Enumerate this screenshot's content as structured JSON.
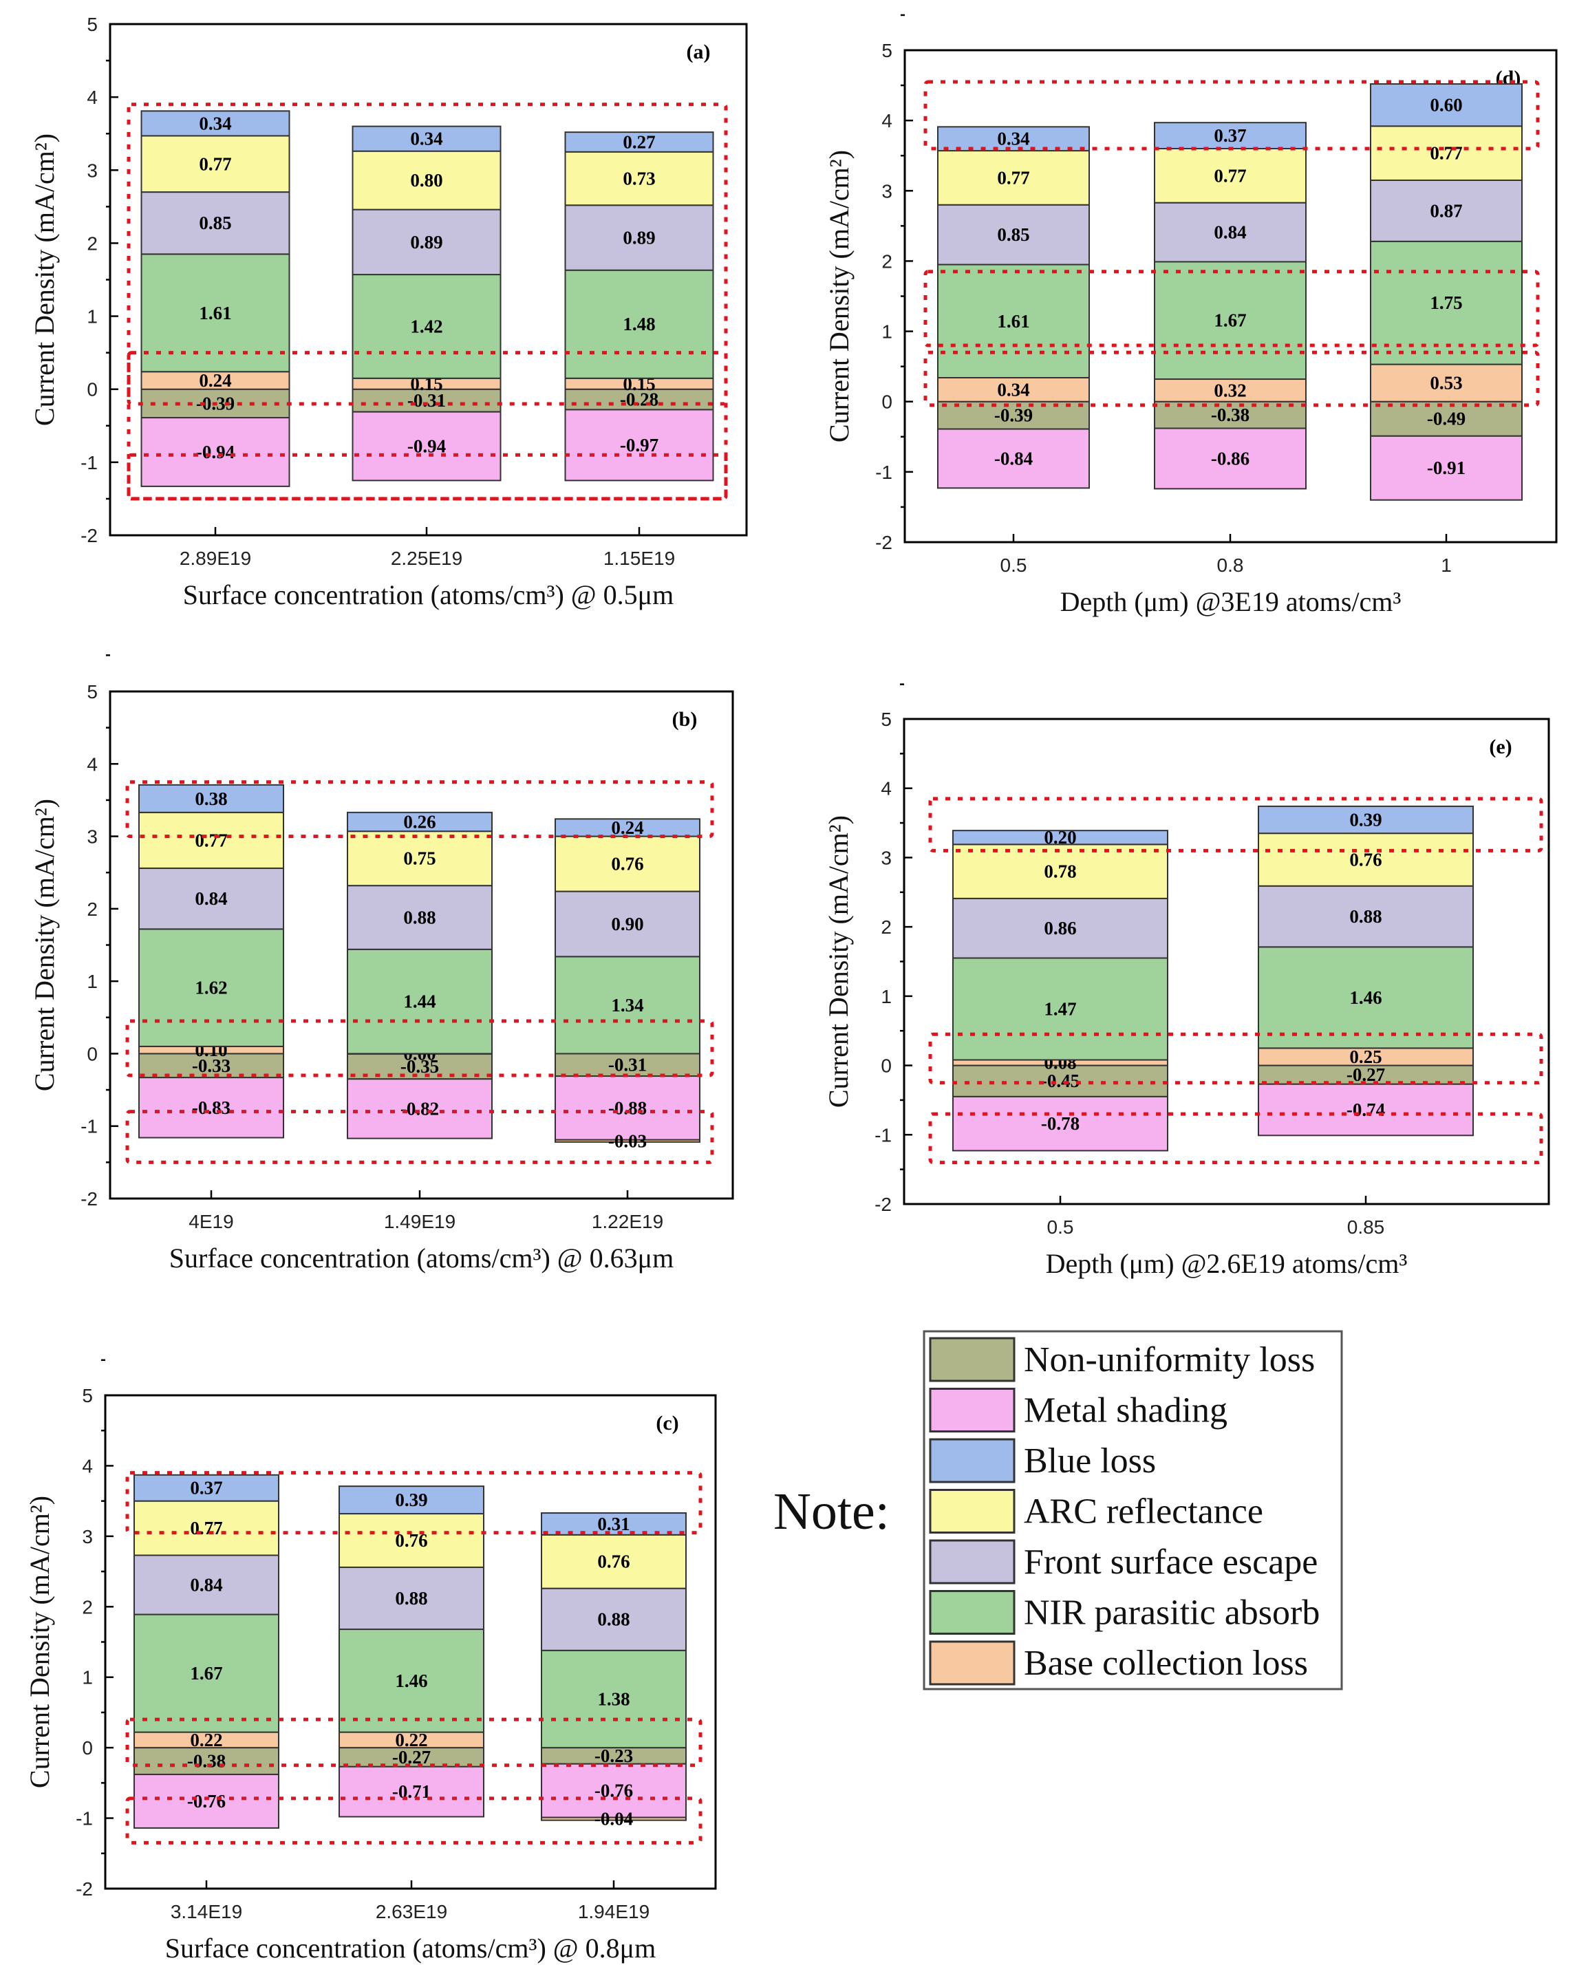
{
  "colors": {
    "Non-uniformity loss": "#b0b489",
    "Metal shading": "#f6b2ee",
    "Blue loss": "#9fbbec",
    "ARC reflectance": "#fbf8a2",
    "Front surface escape": "#c6c1dd",
    "NIR parasitic absorb": "#a0d39b",
    "Base collection loss": "#f8c8a0"
  },
  "legend": {
    "note_label": "Note:",
    "items": [
      "Non-uniformity loss",
      "Metal shading",
      "Blue loss",
      "ARC reflectance",
      "Front surface escape",
      "NIR parasitic absorb",
      "Base collection loss"
    ]
  },
  "chart_data": [
    {
      "id": "a",
      "tag": "(a)",
      "type": "bar",
      "xlabel": "Surface concentration (atoms/cm³) @ 0.5μm",
      "ylabel": "Current Density (mA/cm²)",
      "ylim": [
        -2,
        5
      ],
      "yticks": [
        "-2",
        "-1",
        "0",
        "1",
        "2",
        "3",
        "4",
        "5"
      ],
      "categories": [
        "2.89E19",
        "2.25E19",
        "1.15E19"
      ],
      "series": [
        {
          "name": "Non-uniformity loss",
          "values": [
            -0.39,
            -0.31,
            -0.28
          ]
        },
        {
          "name": "Metal shading",
          "values": [
            -0.94,
            -0.94,
            -0.97
          ]
        },
        {
          "name": "Base collection loss",
          "values": [
            0.24,
            0.15,
            0.15
          ]
        },
        {
          "name": "NIR parasitic absorb",
          "values": [
            1.61,
            1.42,
            1.48
          ]
        },
        {
          "name": "Front surface escape",
          "values": [
            0.85,
            0.89,
            0.89
          ]
        },
        {
          "name": "ARC reflectance",
          "values": [
            0.77,
            0.8,
            0.73
          ]
        },
        {
          "name": "Blue loss",
          "values": [
            0.34,
            0.34,
            0.27
          ]
        }
      ],
      "labels": [
        [
          "-0.39",
          "-0.31",
          "-0.28"
        ],
        [
          "-0.94",
          "-0.94",
          "-0.97"
        ],
        [
          "0.24",
          "0.15",
          "0.15"
        ],
        [
          "1.61",
          "1.42",
          "1.48"
        ],
        [
          "0.85",
          "0.89",
          "0.89"
        ],
        [
          "0.77",
          "0.80",
          "0.73"
        ],
        [
          "0.34",
          "0.34",
          "0.27"
        ]
      ]
    },
    {
      "id": "b",
      "tag": "(b)",
      "type": "bar",
      "xlabel": "Surface concentration (atoms/cm³) @ 0.63μm",
      "ylabel": "Current Density (mA/cm²)",
      "ylim": [
        -2,
        5
      ],
      "yticks": [
        "-2",
        "-1",
        "0",
        "1",
        "2",
        "3",
        "4",
        "5"
      ],
      "categories": [
        "4E19",
        "1.49E19",
        "1.22E19"
      ],
      "series": [
        {
          "name": "Non-uniformity loss",
          "values": [
            -0.33,
            -0.35,
            -0.31
          ]
        },
        {
          "name": "Metal shading",
          "values": [
            -0.83,
            -0.82,
            -0.88
          ]
        },
        {
          "name": "Base collection loss",
          "values": [
            0.1,
            0.0,
            -0.03
          ]
        },
        {
          "name": "NIR parasitic absorb",
          "values": [
            1.62,
            1.44,
            1.34
          ]
        },
        {
          "name": "Front surface escape",
          "values": [
            0.84,
            0.88,
            0.9
          ]
        },
        {
          "name": "ARC reflectance",
          "values": [
            0.77,
            0.75,
            0.76
          ]
        },
        {
          "name": "Blue loss",
          "values": [
            0.38,
            0.26,
            0.24
          ]
        }
      ],
      "labels": [
        [
          "-0.33",
          "-0.35",
          "-0.31"
        ],
        [
          "-0.83",
          "-0.82",
          "-0.88"
        ],
        [
          "0.10",
          "0.00",
          "-0.03"
        ],
        [
          "1.62",
          "1.44",
          "1.34"
        ],
        [
          "0.84",
          "0.88",
          "0.90"
        ],
        [
          "0.77",
          "0.75",
          "0.76"
        ],
        [
          "0.38",
          "0.26",
          "0.24"
        ]
      ]
    },
    {
      "id": "c",
      "tag": "(c)",
      "type": "bar",
      "xlabel": "Surface concentration (atoms/cm³) @ 0.8μm",
      "ylabel": "Current Density (mA/cm²)",
      "ylim": [
        -2,
        5
      ],
      "yticks": [
        "-2",
        "-1",
        "0",
        "1",
        "2",
        "3",
        "4",
        "5"
      ],
      "categories": [
        "3.14E19",
        "2.63E19",
        "1.94E19"
      ],
      "series": [
        {
          "name": "Non-uniformity loss",
          "values": [
            -0.38,
            -0.27,
            -0.23
          ]
        },
        {
          "name": "Metal shading",
          "values": [
            -0.76,
            -0.71,
            -0.76
          ]
        },
        {
          "name": "Base collection loss",
          "values": [
            0.22,
            0.22,
            -0.04
          ]
        },
        {
          "name": "NIR parasitic absorb",
          "values": [
            1.67,
            1.46,
            1.38
          ]
        },
        {
          "name": "Front surface escape",
          "values": [
            0.84,
            0.88,
            0.88
          ]
        },
        {
          "name": "ARC reflectance",
          "values": [
            0.77,
            0.76,
            0.76
          ]
        },
        {
          "name": "Blue loss",
          "values": [
            0.37,
            0.39,
            0.31
          ]
        }
      ],
      "labels": [
        [
          "-0.38",
          "-0.27",
          "-0.23"
        ],
        [
          "-0.76",
          "-0.71",
          "-0.76"
        ],
        [
          "0.22",
          "0.22",
          "-0.04"
        ],
        [
          "1.67",
          "1.46",
          "1.38"
        ],
        [
          "0.84",
          "0.88",
          "0.88"
        ],
        [
          "0.77",
          "0.76",
          "0.76"
        ],
        [
          "0.37",
          "0.39",
          "0.31"
        ]
      ]
    },
    {
      "id": "d",
      "tag": "(d)",
      "type": "bar",
      "xlabel": "Depth (μm) @3E19 atoms/cm³",
      "ylabel": "Current Density (mA/cm²)",
      "ylim": [
        -2,
        5
      ],
      "yticks": [
        "-2",
        "-1",
        "0",
        "1",
        "2",
        "3",
        "4",
        "5"
      ],
      "categories": [
        "0.5",
        "0.8",
        "1"
      ],
      "series": [
        {
          "name": "Non-uniformity loss",
          "values": [
            -0.39,
            -0.38,
            -0.49
          ]
        },
        {
          "name": "Metal shading",
          "values": [
            -0.84,
            -0.86,
            -0.91
          ]
        },
        {
          "name": "Base collection loss",
          "values": [
            0.34,
            0.32,
            0.53
          ]
        },
        {
          "name": "NIR parasitic absorb",
          "values": [
            1.61,
            1.67,
            1.75
          ]
        },
        {
          "name": "Front surface escape",
          "values": [
            0.85,
            0.84,
            0.87
          ]
        },
        {
          "name": "ARC reflectance",
          "values": [
            0.77,
            0.77,
            0.77
          ]
        },
        {
          "name": "Blue loss",
          "values": [
            0.34,
            0.37,
            0.6
          ]
        }
      ],
      "labels": [
        [
          "-0.39",
          "-0.38",
          "-0.49"
        ],
        [
          "-0.84",
          "-0.86",
          "-0.91"
        ],
        [
          "0.34",
          "0.32",
          "0.53"
        ],
        [
          "1.61",
          "1.67",
          "1.75"
        ],
        [
          "0.85",
          "0.84",
          "0.87"
        ],
        [
          "0.77",
          "0.77",
          "0.77"
        ],
        [
          "0.34",
          "0.37",
          "0.60"
        ]
      ]
    },
    {
      "id": "e",
      "tag": "(e)",
      "type": "bar",
      "xlabel": "Depth (μm) @2.6E19 atoms/cm³",
      "ylabel": "Current Density (mA/cm²)",
      "ylim": [
        -2,
        5
      ],
      "yticks": [
        "-2",
        "-1",
        "0",
        "1",
        "2",
        "3",
        "4",
        "5"
      ],
      "categories": [
        "0.5",
        "0.85"
      ],
      "series": [
        {
          "name": "Non-uniformity loss",
          "values": [
            -0.45,
            -0.27
          ]
        },
        {
          "name": "Metal shading",
          "values": [
            -0.78,
            -0.74
          ]
        },
        {
          "name": "Base collection loss",
          "values": [
            0.08,
            0.25
          ]
        },
        {
          "name": "NIR parasitic absorb",
          "values": [
            1.47,
            1.46
          ]
        },
        {
          "name": "Front surface escape",
          "values": [
            0.86,
            0.88
          ]
        },
        {
          "name": "ARC reflectance",
          "values": [
            0.78,
            0.76
          ]
        },
        {
          "name": "Blue loss",
          "values": [
            0.2,
            0.39
          ]
        }
      ],
      "labels": [
        [
          "-0.45",
          "-0.27"
        ],
        [
          "-0.78",
          "-0.74"
        ],
        [
          "0.08",
          "0.25"
        ],
        [
          "1.47",
          "1.46"
        ],
        [
          "0.86",
          "0.88"
        ],
        [
          "0.78",
          "0.76"
        ],
        [
          "0.20",
          "0.39"
        ]
      ]
    }
  ]
}
